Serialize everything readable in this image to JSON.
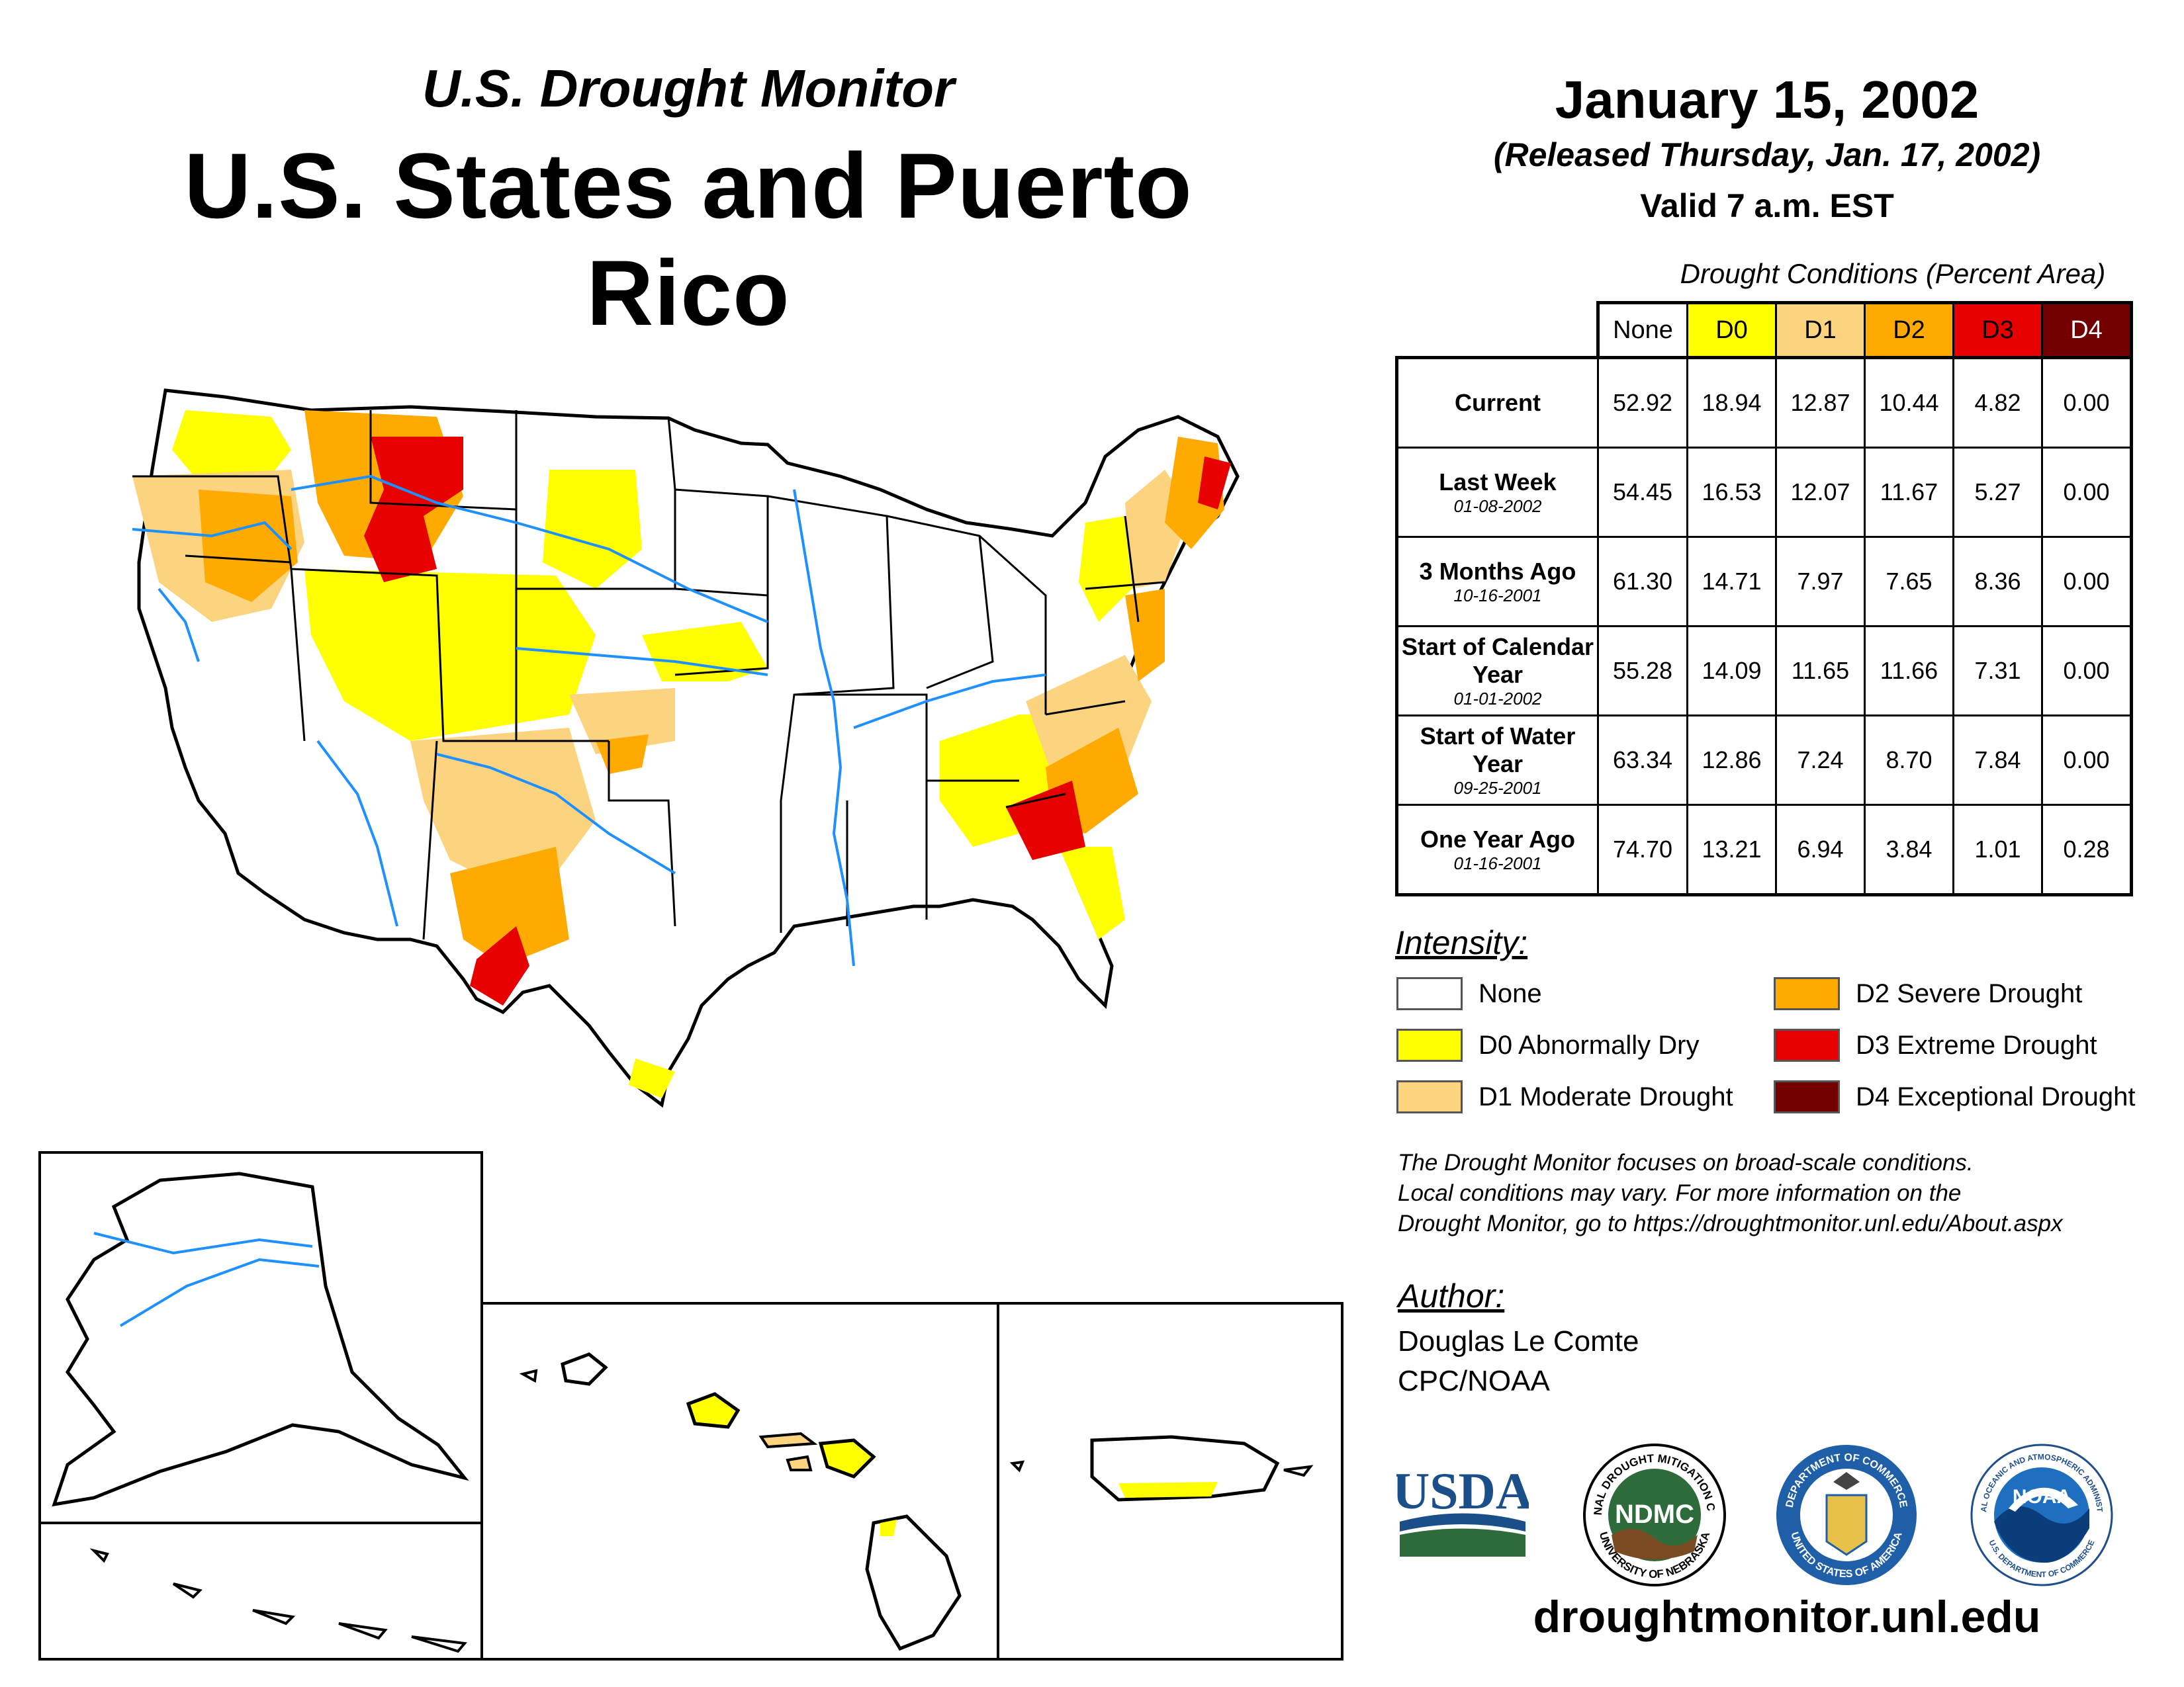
{
  "header": {
    "subtitle": "U.S. Drought Monitor",
    "title": "U.S. States and Puerto Rico",
    "date": "January 15, 2002",
    "released": "(Released Thursday, Jan. 17, 2002)",
    "valid": "Valid 7 a.m. EST"
  },
  "table": {
    "caption": "Drought Conditions (Percent Area)",
    "columns": [
      "None",
      "D0",
      "D1",
      "D2",
      "D3",
      "D4"
    ],
    "column_colors": [
      "#ffffff",
      "#ffff00",
      "#fcd37f",
      "#ffaa00",
      "#e60000",
      "#730000"
    ],
    "rows": [
      {
        "label": "Current",
        "date": "",
        "values": [
          "52.92",
          "18.94",
          "12.87",
          "10.44",
          "4.82",
          "0.00"
        ]
      },
      {
        "label": "Last Week",
        "date": "01-08-2002",
        "values": [
          "54.45",
          "16.53",
          "12.07",
          "11.67",
          "5.27",
          "0.00"
        ]
      },
      {
        "label": "3 Months Ago",
        "date": "10-16-2001",
        "values": [
          "61.30",
          "14.71",
          "7.97",
          "7.65",
          "8.36",
          "0.00"
        ]
      },
      {
        "label": "Start of Calendar Year",
        "date": "01-01-2002",
        "values": [
          "55.28",
          "14.09",
          "11.65",
          "11.66",
          "7.31",
          "0.00"
        ]
      },
      {
        "label": "Start of Water Year",
        "date": "09-25-2001",
        "values": [
          "63.34",
          "12.86",
          "7.24",
          "8.70",
          "7.84",
          "0.00"
        ]
      },
      {
        "label": "One Year Ago",
        "date": "01-16-2001",
        "values": [
          "74.70",
          "13.21",
          "6.94",
          "3.84",
          "1.01",
          "0.28"
        ]
      }
    ]
  },
  "legend": {
    "title": "Intensity:",
    "items": [
      {
        "label": "None",
        "color": "#ffffff"
      },
      {
        "label": "D0 Abnormally Dry",
        "color": "#ffff00"
      },
      {
        "label": "D1 Moderate Drought",
        "color": "#fcd37f"
      },
      {
        "label": "D2 Severe Drought",
        "color": "#ffaa00"
      },
      {
        "label": "D3 Extreme Drought",
        "color": "#e60000"
      },
      {
        "label": "D4 Exceptional Drought",
        "color": "#730000"
      }
    ]
  },
  "note": {
    "line1": "The Drought Monitor focuses on broad-scale conditions.",
    "line2": "Local conditions may vary. For more information on the",
    "line3": "Drought Monitor, go to https://droughtmonitor.unl.edu/About.aspx"
  },
  "author": {
    "title": "Author:",
    "name": "Douglas Le Comte",
    "org": "CPC/NOAA"
  },
  "logos": {
    "usda": "USDA",
    "ndmc": "NDMC",
    "ndmc_ring_top": "NATIONAL DROUGHT MITIGATION CENTER",
    "ndmc_ring_bottom": "UNIVERSITY OF NEBRASKA",
    "commerce_ring_top": "DEPARTMENT OF COMMERCE",
    "commerce_ring_bottom": "UNITED STATES OF AMERICA",
    "noaa": "NOAA",
    "noaa_ring_top": "NATIONAL OCEANIC AND ATMOSPHERIC ADMINISTRATION",
    "noaa_ring_bottom": "U.S. DEPARTMENT OF COMMERCE"
  },
  "footer": {
    "url": "droughtmonitor.unl.edu"
  },
  "colors": {
    "none": "#ffffff",
    "d0": "#ffff00",
    "d1": "#fcd37f",
    "d2": "#ffaa00",
    "d3": "#e60000",
    "d4": "#730000",
    "water": "#1e90ff"
  }
}
